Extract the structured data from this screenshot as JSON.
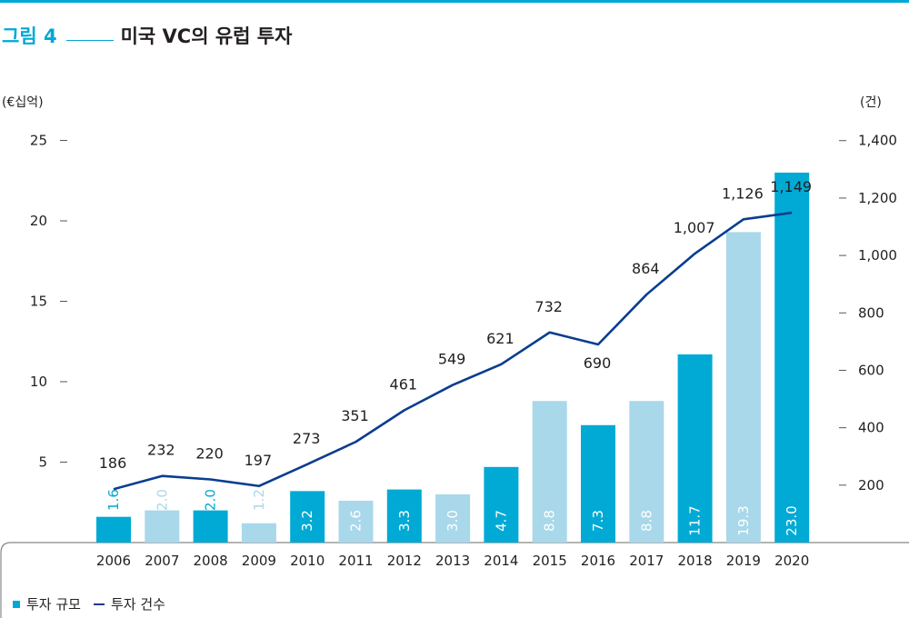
{
  "header": {
    "figure_label": "그림 4",
    "title": "미국 VC의 유럽 투자"
  },
  "legend": {
    "bar_label": "투자 규모",
    "line_label": "투자 건수"
  },
  "colors": {
    "accent": "#00a8d6",
    "bar_dark": "#00aad4",
    "bar_light": "#a8d8ea",
    "line": "#0a3d8f",
    "frame": "#888888"
  },
  "chart_data": {
    "type": "bar",
    "title": "미국 VC의 유럽 투자",
    "categories": [
      "2006",
      "2007",
      "2008",
      "2009",
      "2010",
      "2011",
      "2012",
      "2013",
      "2014",
      "2015",
      "2016",
      "2017",
      "2018",
      "2019",
      "2020"
    ],
    "series": [
      {
        "name": "투자 규모",
        "type": "bar",
        "axis": "left",
        "values": [
          1.6,
          2.0,
          2.0,
          1.2,
          3.2,
          2.6,
          3.3,
          3.0,
          4.7,
          8.8,
          7.3,
          8.8,
          11.7,
          19.3,
          23.0
        ],
        "labels": [
          "1.6",
          "2.0",
          "2.0",
          "1.2",
          "3.2",
          "2.6",
          "3.3",
          "3.0",
          "4.7",
          "8.8",
          "7.3",
          "8.8",
          "11.7",
          "19.3",
          "23.0"
        ],
        "shade": [
          "dark",
          "light",
          "dark",
          "light",
          "dark",
          "light",
          "dark",
          "light",
          "dark",
          "light",
          "dark",
          "light",
          "dark",
          "light",
          "dark"
        ]
      },
      {
        "name": "투자 건수",
        "type": "line",
        "axis": "right",
        "values": [
          186,
          232,
          220,
          197,
          273,
          351,
          461,
          549,
          621,
          732,
          690,
          864,
          1007,
          1126,
          1149
        ],
        "labels": [
          "186",
          "232",
          "220",
          "197",
          "273",
          "351",
          "461",
          "549",
          "621",
          "732",
          "690",
          "864",
          "1,007",
          "1,126",
          "1,149"
        ]
      }
    ],
    "left_axis": {
      "unit": "(€십억)",
      "ticks": [
        5,
        10,
        15,
        20,
        25
      ],
      "tick_labels": [
        "5",
        "10",
        "15",
        "20",
        "25"
      ],
      "range": [
        0,
        25
      ]
    },
    "right_axis": {
      "unit": "(건)",
      "ticks": [
        200,
        400,
        600,
        800,
        1000,
        1200,
        1400
      ],
      "tick_labels": [
        "200",
        "400",
        "600",
        "800",
        "1,000",
        "1,200",
        "1,400"
      ],
      "range": [
        0,
        1400
      ]
    },
    "grid": false,
    "legend_position": "bottom-left"
  }
}
